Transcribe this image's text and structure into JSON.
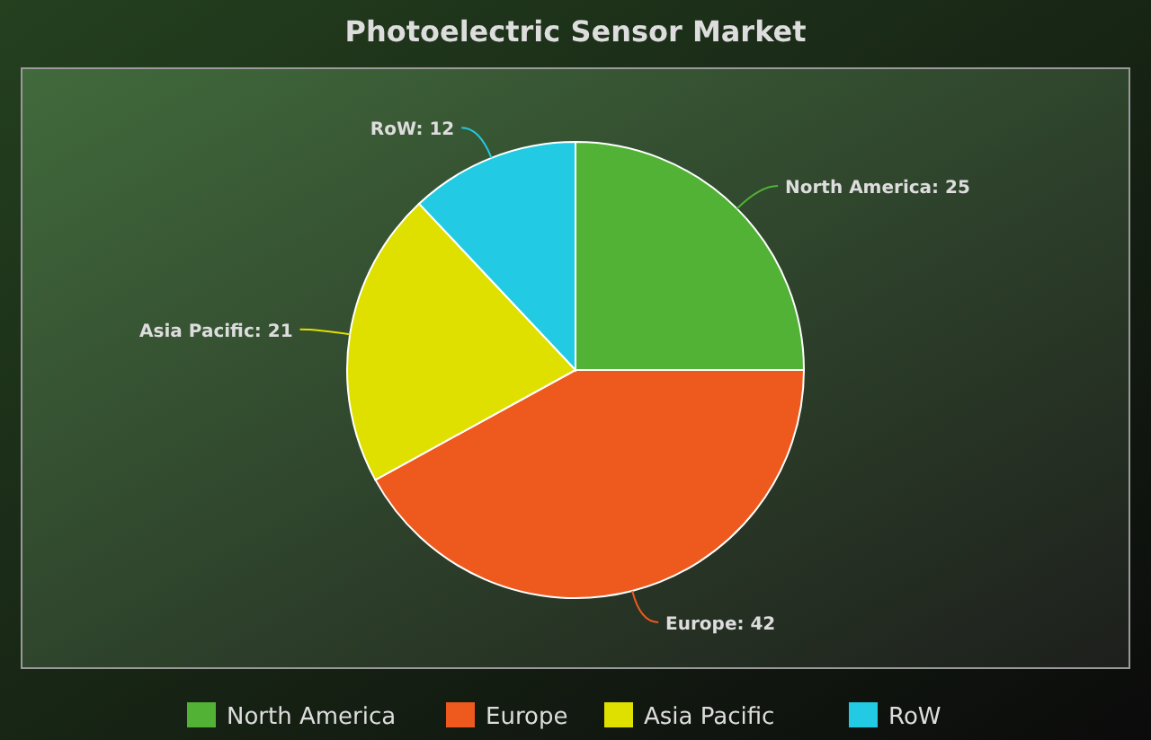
{
  "chart_data": {
    "type": "pie",
    "title": "Photoelectric Sensor Market",
    "categories": [
      "North America",
      "Europe",
      "Asia Pacific",
      "RoW"
    ],
    "values": [
      25,
      42,
      21,
      12
    ],
    "colors": [
      "#52b236",
      "#ee5a1e",
      "#dfe000",
      "#22cbe3"
    ],
    "value_labels": [
      "North America: 25",
      "Europe: 42",
      "Asia Pacific: 21",
      "RoW: 12"
    ],
    "legend": "bottom"
  }
}
